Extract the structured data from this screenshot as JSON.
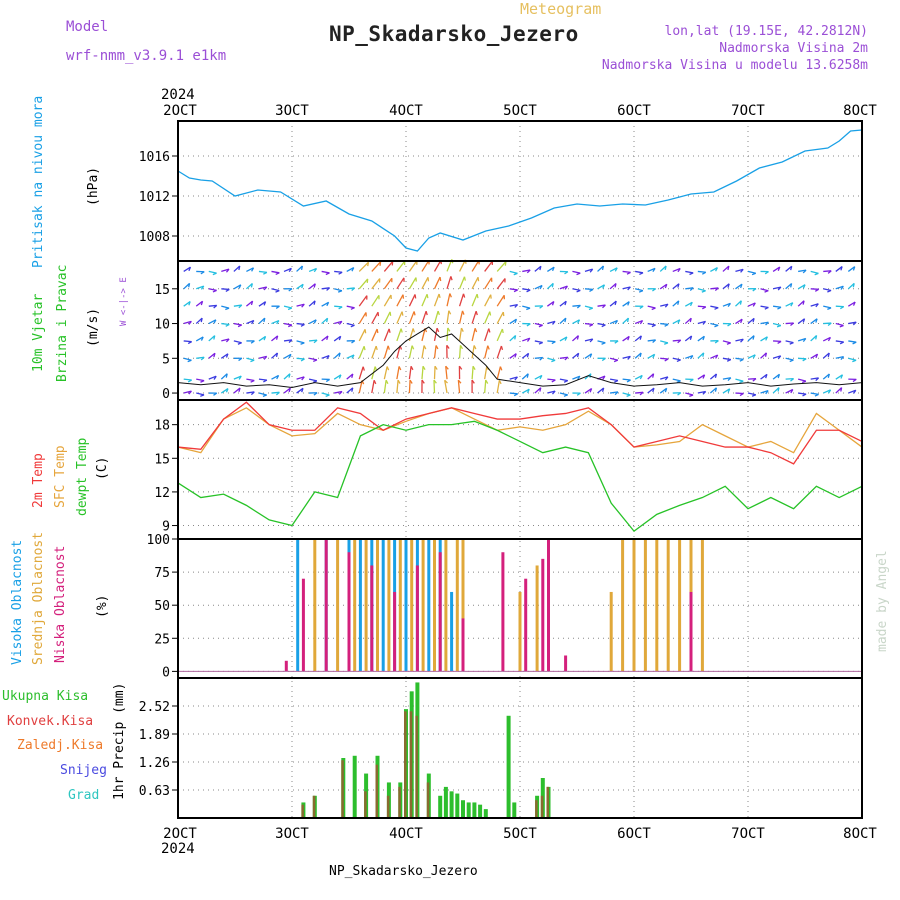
{
  "header": {
    "model_label": "Model",
    "model_name": "wrf-nmm_v3.9.1  e1km",
    "meteogram_label": "Meteogram",
    "title": "NP_Skadarsko_Jezero",
    "lonlat": "lon,lat (19.15E, 42.2812N)",
    "elevation": "Nadmorska Visina 2m",
    "model_elevation": "Nadmorska Visina u modelu 13.6258m",
    "credit": "made by Angel",
    "footer_title": "NP_Skadarsko_Jezero"
  },
  "colors": {
    "pressure": "#19a0e6",
    "title": "#222222",
    "model": "#9b4fd6",
    "temp2m": "#f03a3a",
    "sfc": "#e6a53c",
    "dewpt": "#27c227",
    "cloud_high": "#19a0e6",
    "cloud_mid": "#e0a83a",
    "cloud_low": "#d4207c",
    "precip_total": "#2dbe2d",
    "precip_conv": "#e04040",
    "precip_strat": "#ee7a2a",
    "snow": "#4a4ae0",
    "graupel": "#2ec6c0",
    "wind_speed": "#111111"
  },
  "time_axis": {
    "top_year": "2024",
    "bottom_year": "2024",
    "ticks": [
      "2OCT",
      "3OCT",
      "4OCT",
      "5OCT",
      "6OCT",
      "7OCT",
      "8OCT"
    ],
    "range_days": [
      2,
      8
    ]
  },
  "chart_data": [
    {
      "type": "line",
      "panel": "pressure",
      "label": "Pritisak na nivou mora",
      "ylabel": "(hPa)",
      "yticks": [
        "1008",
        "1012",
        "1016"
      ],
      "ylim": [
        1005.5,
        1019.5
      ],
      "x_units": "day of October 2024",
      "x": [
        2.0,
        2.1,
        2.2,
        2.3,
        2.5,
        2.7,
        2.9,
        3.1,
        3.3,
        3.5,
        3.7,
        3.9,
        4.0,
        4.1,
        4.2,
        4.3,
        4.5,
        4.7,
        4.9,
        5.1,
        5.3,
        5.5,
        5.7,
        5.9,
        6.1,
        6.3,
        6.5,
        6.7,
        6.9,
        7.1,
        7.3,
        7.5,
        7.7,
        7.8,
        7.9,
        8.0
      ],
      "series": [
        {
          "values": [
            1014.5,
            1013.8,
            1013.6,
            1013.5,
            1012.0,
            1012.6,
            1012.4,
            1011.0,
            1011.5,
            1010.2,
            1009.5,
            1008.0,
            1006.8,
            1006.5,
            1007.8,
            1008.3,
            1007.6,
            1008.5,
            1009.0,
            1009.8,
            1010.8,
            1011.2,
            1011.0,
            1011.2,
            1011.1,
            1011.6,
            1012.2,
            1012.4,
            1013.5,
            1014.8,
            1015.4,
            1016.5,
            1016.8,
            1017.5,
            1018.5,
            1018.6
          ]
        }
      ],
      "grid": true
    },
    {
      "type": "line",
      "panel": "wind",
      "label_lines": [
        "10m Vjetar",
        "Brzina i Pravac"
      ],
      "ylabel": "(m/s)",
      "compass_label": "W <-|-> E",
      "yticks": [
        "0",
        "5",
        "10",
        "15"
      ],
      "ylim": [
        -1,
        19
      ],
      "x_units": "day of October 2024",
      "x": [
        2.0,
        2.2,
        2.4,
        2.6,
        2.8,
        3.0,
        3.2,
        3.4,
        3.6,
        3.8,
        3.9,
        4.0,
        4.1,
        4.2,
        4.3,
        4.4,
        4.5,
        4.6,
        4.7,
        4.8,
        5.0,
        5.2,
        5.4,
        5.6,
        5.8,
        6.0,
        6.2,
        6.4,
        6.6,
        6.8,
        7.0,
        7.2,
        7.4,
        7.6,
        7.8,
        8.0
      ],
      "series": [
        {
          "name": "speed",
          "values": [
            1.5,
            1.2,
            1.5,
            1.0,
            1.2,
            0.8,
            1.5,
            1.0,
            1.5,
            4.0,
            6.0,
            7.5,
            8.5,
            9.5,
            8.0,
            8.5,
            7.0,
            5.5,
            4.0,
            2.0,
            1.5,
            1.0,
            1.2,
            2.5,
            1.5,
            1.0,
            1.2,
            1.5,
            1.0,
            1.2,
            1.5,
            1.0,
            1.3,
            1.5,
            1.2,
            1.5
          ]
        }
      ],
      "grid": true
    },
    {
      "type": "line",
      "panel": "temperature",
      "labels": [
        "2m Temp",
        "SFC Temp",
        "dewpt Temp"
      ],
      "ylabel": "(C)",
      "yticks": [
        "9",
        "12",
        "15",
        "18"
      ],
      "ylim": [
        7.8,
        20.2
      ],
      "x_units": "day of October 2024",
      "x": [
        2.0,
        2.2,
        2.4,
        2.6,
        2.8,
        3.0,
        3.2,
        3.4,
        3.6,
        3.8,
        4.0,
        4.2,
        4.4,
        4.6,
        4.8,
        5.0,
        5.2,
        5.4,
        5.6,
        5.8,
        6.0,
        6.2,
        6.4,
        6.6,
        6.8,
        7.0,
        7.2,
        7.4,
        7.6,
        7.8,
        8.0
      ],
      "series": [
        {
          "name": "2m Temp",
          "values": [
            16.0,
            15.8,
            18.5,
            20.0,
            18.0,
            17.5,
            17.5,
            19.5,
            19.0,
            17.5,
            18.5,
            19.0,
            19.5,
            19.0,
            18.5,
            18.5,
            18.8,
            19.0,
            19.5,
            18.0,
            16.0,
            16.5,
            17.0,
            16.5,
            16.0,
            16.0,
            15.5,
            14.5,
            17.5,
            17.5,
            16.5
          ]
        },
        {
          "name": "SFC Temp",
          "values": [
            16.0,
            15.5,
            18.5,
            19.5,
            18.0,
            17.0,
            17.2,
            19.0,
            18.0,
            17.5,
            18.3,
            19.0,
            19.5,
            18.5,
            17.5,
            17.8,
            17.5,
            18.0,
            19.2,
            18.0,
            16.0,
            16.2,
            16.5,
            18.0,
            17.0,
            16.0,
            16.5,
            15.5,
            19.0,
            17.5,
            16.0
          ]
        },
        {
          "name": "dewpt Temp",
          "values": [
            12.8,
            11.5,
            11.8,
            10.8,
            9.5,
            9.0,
            12.0,
            11.5,
            17.0,
            18.0,
            17.5,
            18.0,
            18.0,
            18.3,
            17.5,
            16.5,
            15.5,
            16.0,
            15.5,
            11.0,
            8.5,
            10.0,
            10.8,
            11.5,
            12.5,
            10.5,
            11.5,
            10.5,
            12.5,
            11.5,
            12.5
          ]
        }
      ],
      "grid": true
    },
    {
      "type": "bar",
      "panel": "clouds",
      "labels": [
        "Visoka Oblacnost",
        "Srednja Oblacnost",
        "Niska Oblacnost"
      ],
      "ylabel": "(%)",
      "yticks": [
        "0",
        "25",
        "50",
        "75",
        "100"
      ],
      "ylim": [
        -5,
        100
      ],
      "x_units": "day of October 2024",
      "high": {
        "x": [
          3.05,
          3.3,
          3.5,
          3.6,
          3.7,
          3.8,
          3.9,
          4.0,
          4.1,
          4.2,
          4.3,
          4.4
        ],
        "values": [
          100,
          100,
          100,
          100,
          100,
          100,
          100,
          100,
          100,
          100,
          100,
          60
        ]
      },
      "mid": {
        "x": [
          3.2,
          3.4,
          3.55,
          3.65,
          3.75,
          3.85,
          3.95,
          4.05,
          4.15,
          4.25,
          4.35,
          4.45,
          4.5,
          5.0,
          5.15,
          5.8,
          5.9,
          6.0,
          6.1,
          6.2,
          6.3,
          6.4,
          6.5,
          6.6
        ],
        "values": [
          100,
          100,
          100,
          100,
          100,
          100,
          100,
          100,
          100,
          100,
          100,
          100,
          100,
          60,
          80,
          60,
          100,
          100,
          100,
          100,
          100,
          100,
          100,
          100
        ]
      },
      "low": {
        "x": [
          2.95,
          3.1,
          3.3,
          3.5,
          3.7,
          3.9,
          4.1,
          4.3,
          4.5,
          4.85,
          5.05,
          5.2,
          5.25,
          5.4,
          6.5
        ],
        "values": [
          8,
          70,
          100,
          90,
          80,
          60,
          80,
          90,
          40,
          90,
          70,
          85,
          100,
          12,
          60
        ]
      },
      "grid": true
    },
    {
      "type": "bar",
      "panel": "precip",
      "legend": [
        "Ukupna Kisa",
        "Konvek.Kisa",
        "Zaledj.Kisa",
        "Snijeg",
        "Grad"
      ],
      "ylabel": "1hr Precip (mm)",
      "yticks": [
        "0.63",
        "1.26",
        "1.89",
        "2.52"
      ],
      "ylim": [
        0,
        3.15
      ],
      "x_units": "day of October 2024",
      "total": {
        "x": [
          3.1,
          3.2,
          3.45,
          3.55,
          3.65,
          3.75,
          3.85,
          3.95,
          4.0,
          4.05,
          4.1,
          4.2,
          4.3,
          4.35,
          4.4,
          4.45,
          4.5,
          4.55,
          4.6,
          4.65,
          4.7,
          4.9,
          4.95,
          5.15,
          5.2,
          5.25
        ],
        "values": [
          0.35,
          0.5,
          1.35,
          1.4,
          1.0,
          1.4,
          0.8,
          0.8,
          2.45,
          2.85,
          3.05,
          1.0,
          0.5,
          0.7,
          0.6,
          0.55,
          0.4,
          0.35,
          0.35,
          0.3,
          0.2,
          2.3,
          0.35,
          0.5,
          0.9,
          0.7
        ]
      },
      "convective": {
        "x": [
          3.1,
          3.2,
          3.45,
          3.65,
          3.75,
          3.85,
          3.95,
          4.0,
          4.05,
          4.1,
          4.2,
          5.15,
          5.2,
          5.25
        ],
        "values": [
          0.3,
          0.5,
          1.3,
          0.6,
          1.2,
          0.5,
          0.7,
          2.4,
          2.4,
          2.3,
          0.8,
          0.4,
          0.5,
          0.7
        ]
      },
      "grid": true
    }
  ]
}
